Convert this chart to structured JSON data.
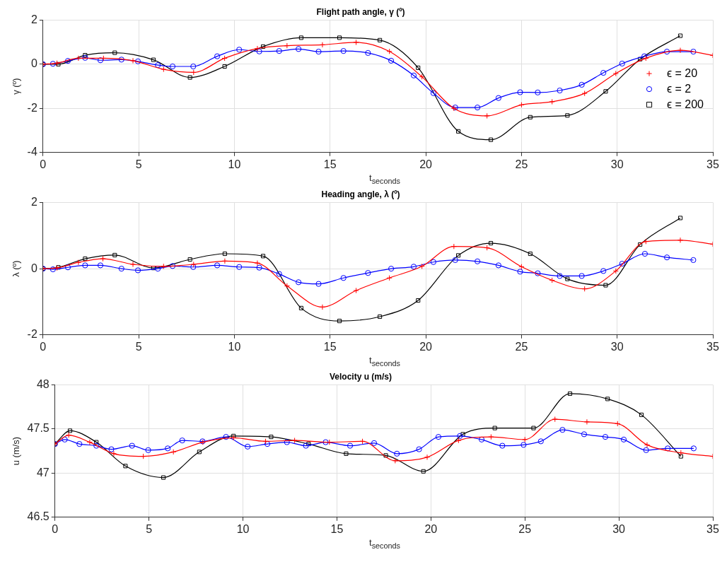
{
  "chart_data": [
    {
      "type": "line",
      "title": "Flight path angle, γ (º)",
      "xlabel": "t$_{seconds}$",
      "ylabel": "γ (º)",
      "xlim": [
        0,
        35
      ],
      "xticks": [
        0,
        5,
        10,
        15,
        20,
        25,
        30,
        35
      ],
      "ylim": [
        -4,
        2
      ],
      "yticks": [
        -4,
        -2,
        0,
        2
      ],
      "grid": true,
      "legend": "right",
      "line_style": "solid",
      "series": [
        {
          "name": "ϵ = 20",
          "color": "#ff0000",
          "marker": "cross",
          "x": [
            0,
            0.73,
            1.85,
            3.16,
            4.7,
            6.3,
            7.87,
            9.49,
            11.2,
            12.75,
            14.6,
            16.36,
            18.1,
            19.8,
            21.47,
            23.2,
            25.0,
            26.6,
            28.3,
            29.93,
            31.5,
            33.3,
            35
          ],
          "values": [
            0,
            0.05,
            0.27,
            0.27,
            0.16,
            -0.23,
            -0.37,
            0.27,
            0.71,
            0.84,
            0.88,
            0.99,
            0.58,
            -0.57,
            -2.0,
            -2.34,
            -1.84,
            -1.7,
            -1.32,
            -0.42,
            0.27,
            0.63,
            0.4
          ]
        },
        {
          "name": "ϵ = 2",
          "color": "#0000ff",
          "marker": "circle",
          "x": [
            0,
            0.52,
            1.3,
            2.2,
            3.0,
            4.1,
            4.96,
            6.0,
            6.77,
            7.85,
            9.1,
            10.25,
            11.3,
            12.34,
            13.35,
            14.4,
            15.7,
            16.98,
            18.19,
            19.37,
            20.4,
            21.54,
            22.7,
            23.8,
            24.93,
            25.85,
            27.0,
            28.15,
            29.28,
            30.26,
            31.42,
            32.6,
            33.98
          ],
          "values": [
            0,
            0.02,
            0.15,
            0.29,
            0.18,
            0.21,
            0.13,
            -0.04,
            -0.1,
            -0.1,
            0.36,
            0.66,
            0.58,
            0.6,
            0.69,
            0.57,
            0.6,
            0.51,
            0.16,
            -0.51,
            -1.31,
            -1.96,
            -1.96,
            -1.53,
            -1.27,
            -1.28,
            -1.19,
            -0.93,
            -0.39,
            0.03,
            0.36,
            0.57,
            0.57
          ]
        },
        {
          "name": "ϵ = 200",
          "color": "#000000",
          "marker": "square",
          "x": [
            0,
            0.8,
            2.2,
            3.75,
            5.77,
            7.68,
            9.49,
            11.5,
            13.49,
            15.49,
            17.6,
            19.6,
            21.7,
            23.4,
            25.46,
            27.4,
            29.4,
            31.2,
            33.3
          ],
          "values": [
            0,
            0,
            0.41,
            0.52,
            0.2,
            -0.6,
            -0.1,
            0.8,
            1.2,
            1.2,
            1.09,
            -0.16,
            -3.04,
            -3.42,
            -2.4,
            -2.32,
            -1.23,
            0.23,
            1.29
          ]
        }
      ]
    },
    {
      "type": "line",
      "title": "Heading angle, λ (º)",
      "xlabel": "t$_{seconds}$",
      "ylabel": "λ (º)",
      "xlim": [
        0,
        35
      ],
      "xticks": [
        0,
        5,
        10,
        15,
        20,
        25,
        30,
        35
      ],
      "ylim": [
        -2,
        2
      ],
      "yticks": [
        -2,
        0,
        2
      ],
      "grid": true,
      "line_style": "solid",
      "series": [
        {
          "color": "#ff0000",
          "marker": "cross",
          "x": [
            0,
            0.73,
            1.85,
            3.13,
            4.7,
            6.3,
            7.87,
            9.5,
            11.2,
            12.75,
            14.6,
            16.36,
            18.1,
            19.8,
            21.47,
            23.2,
            25.0,
            26.6,
            28.3,
            29.93,
            31.5,
            33.3,
            35
          ],
          "values": [
            0,
            0.02,
            0.19,
            0.3,
            0.13,
            0.07,
            0.13,
            0.23,
            0.17,
            -0.52,
            -1.16,
            -0.66,
            -0.28,
            0.07,
            0.67,
            0.63,
            0.06,
            -0.35,
            -0.61,
            -0.07,
            0.82,
            0.86,
            0.74
          ]
        },
        {
          "color": "#0000ff",
          "marker": "circle",
          "x": [
            0,
            0.52,
            1.3,
            2.2,
            3.0,
            4.1,
            4.96,
            6.0,
            6.77,
            7.85,
            9.1,
            10.25,
            11.3,
            12.34,
            13.35,
            14.4,
            15.7,
            16.98,
            18.19,
            19.37,
            20.4,
            21.54,
            22.7,
            23.8,
            24.93,
            25.85,
            27.0,
            28.15,
            29.28,
            30.26,
            31.45,
            32.6,
            33.98
          ],
          "values": [
            0,
            -0.02,
            0.04,
            0.1,
            0.1,
            0,
            -0.05,
            0,
            0.08,
            0.05,
            0.1,
            0.05,
            0.03,
            -0.16,
            -0.41,
            -0.46,
            -0.28,
            -0.13,
            0,
            0.06,
            0.2,
            0.26,
            0.22,
            0.1,
            -0.09,
            -0.14,
            -0.22,
            -0.22,
            -0.07,
            0.15,
            0.45,
            0.34,
            0.26
          ]
        },
        {
          "color": "#000000",
          "marker": "square",
          "x": [
            0,
            0.8,
            2.2,
            3.75,
            5.77,
            7.68,
            9.5,
            11.5,
            13.49,
            15.49,
            17.6,
            19.6,
            21.7,
            23.4,
            25.46,
            27.4,
            29.4,
            31.2,
            33.3
          ],
          "values": [
            0,
            0.04,
            0.3,
            0.41,
            0.02,
            0.28,
            0.45,
            0.38,
            -1.19,
            -1.58,
            -1.45,
            -0.96,
            0.4,
            0.77,
            0.45,
            -0.31,
            -0.5,
            0.73,
            1.53
          ]
        }
      ]
    },
    {
      "type": "line",
      "title": "Velocity u (m/s)",
      "xlabel": "t$_{seconds}$",
      "ylabel": "u (m/s)",
      "xlim": [
        0,
        35
      ],
      "xticks": [
        0,
        5,
        10,
        15,
        20,
        25,
        30,
        35
      ],
      "ylim": [
        46.5,
        48
      ],
      "yticks": [
        46.5,
        47,
        47.5,
        48
      ],
      "grid": true,
      "line_style": "solid",
      "series": [
        {
          "color": "#ff0000",
          "marker": "cross",
          "x": [
            0,
            0.73,
            1.85,
            3.13,
            4.7,
            6.3,
            7.87,
            9.5,
            11.2,
            12.75,
            14.6,
            16.36,
            18.1,
            19.8,
            21.47,
            23.2,
            25.0,
            26.6,
            28.3,
            29.93,
            31.5,
            33.3,
            35
          ],
          "values": [
            47.33,
            47.43,
            47.35,
            47.22,
            47.19,
            47.24,
            47.35,
            47.4,
            47.36,
            47.37,
            47.35,
            47.36,
            47.14,
            47.18,
            47.37,
            47.41,
            47.38,
            47.61,
            47.58,
            47.56,
            47.32,
            47.23,
            47.19
          ]
        },
        {
          "color": "#0000ff",
          "marker": "circle",
          "x": [
            0,
            0.52,
            1.3,
            2.2,
            3.0,
            4.1,
            4.96,
            6.0,
            6.77,
            7.85,
            9.1,
            10.25,
            11.3,
            12.34,
            13.35,
            14.4,
            15.7,
            16.98,
            18.19,
            19.37,
            20.4,
            21.54,
            22.7,
            23.8,
            24.93,
            25.85,
            27.0,
            28.15,
            29.28,
            30.26,
            31.45,
            32.6,
            33.98
          ],
          "values": [
            47.33,
            47.38,
            47.33,
            47.31,
            47.27,
            47.31,
            47.26,
            47.28,
            47.37,
            47.36,
            47.41,
            47.3,
            47.33,
            47.35,
            47.31,
            47.35,
            47.31,
            47.34,
            47.22,
            47.27,
            47.41,
            47.42,
            47.38,
            47.31,
            47.32,
            47.36,
            47.49,
            47.44,
            47.41,
            47.38,
            47.26,
            47.28,
            47.28
          ]
        },
        {
          "color": "#000000",
          "marker": "square",
          "x": [
            0,
            0.8,
            2.2,
            3.75,
            5.77,
            7.68,
            9.5,
            11.5,
            13.49,
            15.49,
            17.6,
            19.6,
            21.7,
            23.4,
            25.46,
            27.4,
            29.4,
            31.2,
            33.3
          ],
          "values": [
            47.33,
            47.48,
            47.35,
            47.08,
            46.95,
            47.24,
            47.42,
            47.41,
            47.33,
            47.22,
            47.2,
            47.02,
            47.44,
            47.51,
            47.51,
            47.9,
            47.84,
            47.66,
            47.19
          ]
        }
      ]
    }
  ]
}
